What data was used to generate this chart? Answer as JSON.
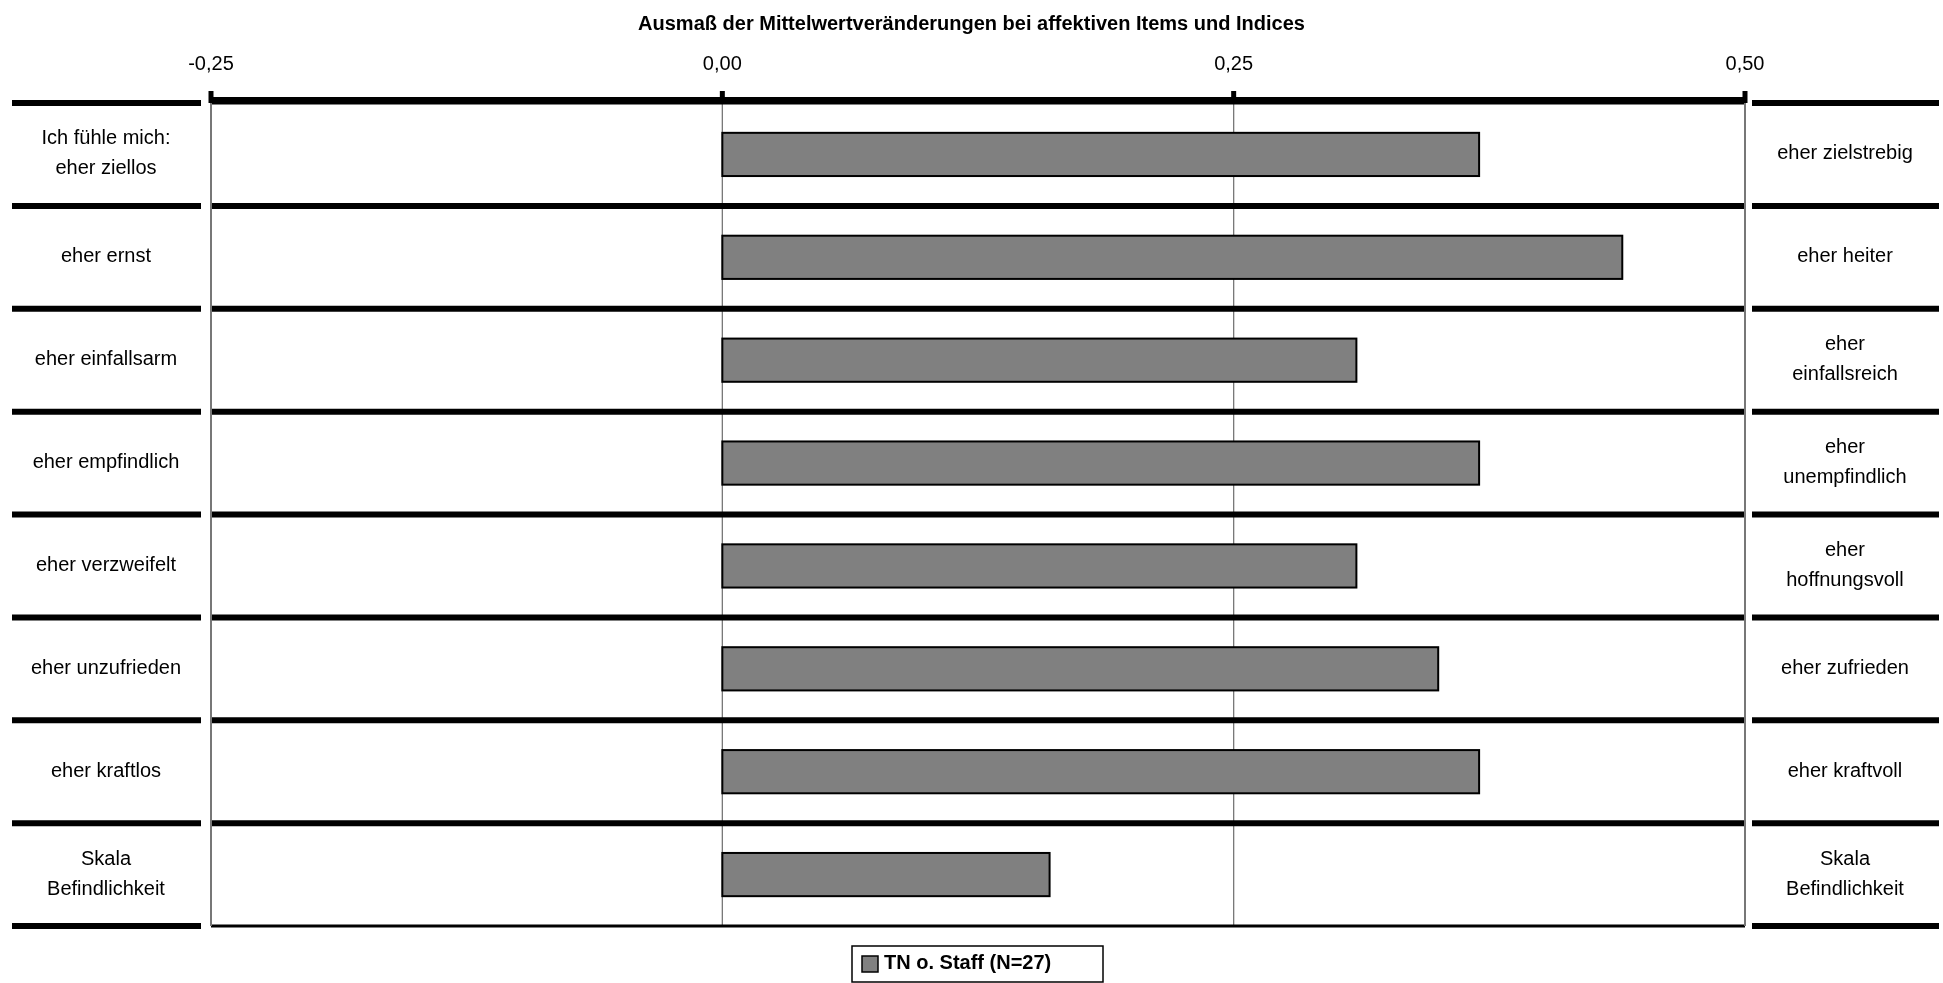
{
  "chart_data": {
    "type": "bar",
    "orientation": "horizontal",
    "title": "Ausmaß der Mittelwertveränderungen bei affektiven Items und Indices",
    "categories": [
      "Ich fühle mich: eher ziellos",
      "eher ernst",
      "eher einfallsarm",
      "eher empfindlich",
      "eher verzweifelt",
      "eher unzufrieden",
      "eher kraftlos",
      "Skala Befindlichkeit"
    ],
    "y2_categories": [
      "eher zielstrebig",
      "eher heiter",
      "eher einfallsreich",
      "eher unempfindlich",
      "eher hoffnungsvoll",
      "eher zufrieden",
      "eher kraftvoll",
      "Skala Befindlichkeit"
    ],
    "series": [
      {
        "name": "TN o. Staff (N=27)",
        "color": "#808080",
        "values": [
          0.37,
          0.44,
          0.31,
          0.37,
          0.31,
          0.35,
          0.37,
          0.16
        ]
      }
    ],
    "xlim": [
      -0.25,
      0.5
    ],
    "xticks": [
      {
        "value": -0.25,
        "label": "-0,25"
      },
      {
        "value": 0,
        "label": "0,00"
      },
      {
        "value": 0.25,
        "label": "0,25"
      },
      {
        "value": 0.5,
        "label": "0,50"
      }
    ],
    "grid": "x",
    "legend": "bottom"
  }
}
